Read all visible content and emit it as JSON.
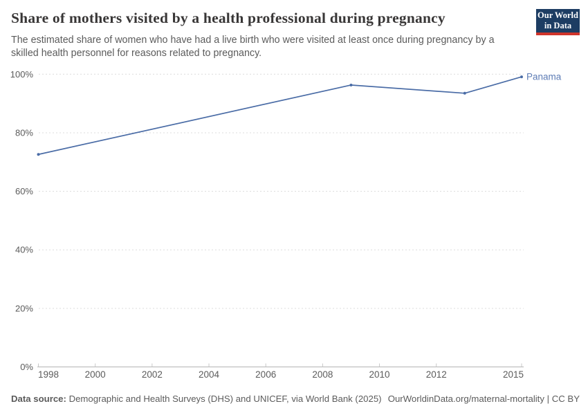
{
  "header": {
    "title": "Share of mothers visited by a health professional during pregnancy",
    "subtitle": "The estimated share of women who have had a live birth who were visited at least once during pregnancy by a skilled health personnel for reasons related to pregnancy.",
    "logo_line1": "Our World",
    "logo_line2": "in Data"
  },
  "chart_data": {
    "type": "line",
    "title": "Share of mothers visited by a health professional during pregnancy",
    "xlabel": "",
    "ylabel": "",
    "xlim": [
      1998,
      2015
    ],
    "ylim": [
      0,
      100
    ],
    "x_ticks": [
      1998,
      2000,
      2002,
      2004,
      2006,
      2008,
      2010,
      2012,
      2015
    ],
    "x_tick_labels": [
      "1998",
      "2000",
      "2002",
      "2004",
      "2006",
      "2008",
      "2010",
      "2012",
      "2015"
    ],
    "y_ticks": [
      0,
      20,
      40,
      60,
      80,
      100
    ],
    "y_tick_labels": [
      "0%",
      "20%",
      "40%",
      "60%",
      "80%",
      "100%"
    ],
    "grid": "horizontal-dashed",
    "legend_position": "end-of-line",
    "series": [
      {
        "name": "Panama",
        "color": "#4a6ca6",
        "label_color": "#5d7cb5",
        "x": [
          1998,
          2009,
          2013,
          2015
        ],
        "values": [
          72.6,
          96.3,
          93.5,
          99.1
        ]
      }
    ]
  },
  "footer": {
    "datasource_label": "Data source:",
    "datasource_text": "Demographic and Health Surveys (DHS) and UNICEF, via World Bank (2025)",
    "citation": "OurWorldinData.org/maternal-mortality | CC BY"
  },
  "colors": {
    "accent_blue": "#4a6ca6",
    "logo_navy": "#1d3d63",
    "logo_red": "#cf342b",
    "title_text": "#383636",
    "body_text": "#5b5b5b",
    "gridline": "#dcdcdc",
    "axis_line": "#b3b3b3",
    "tick_mark": "#c8c8c8"
  }
}
